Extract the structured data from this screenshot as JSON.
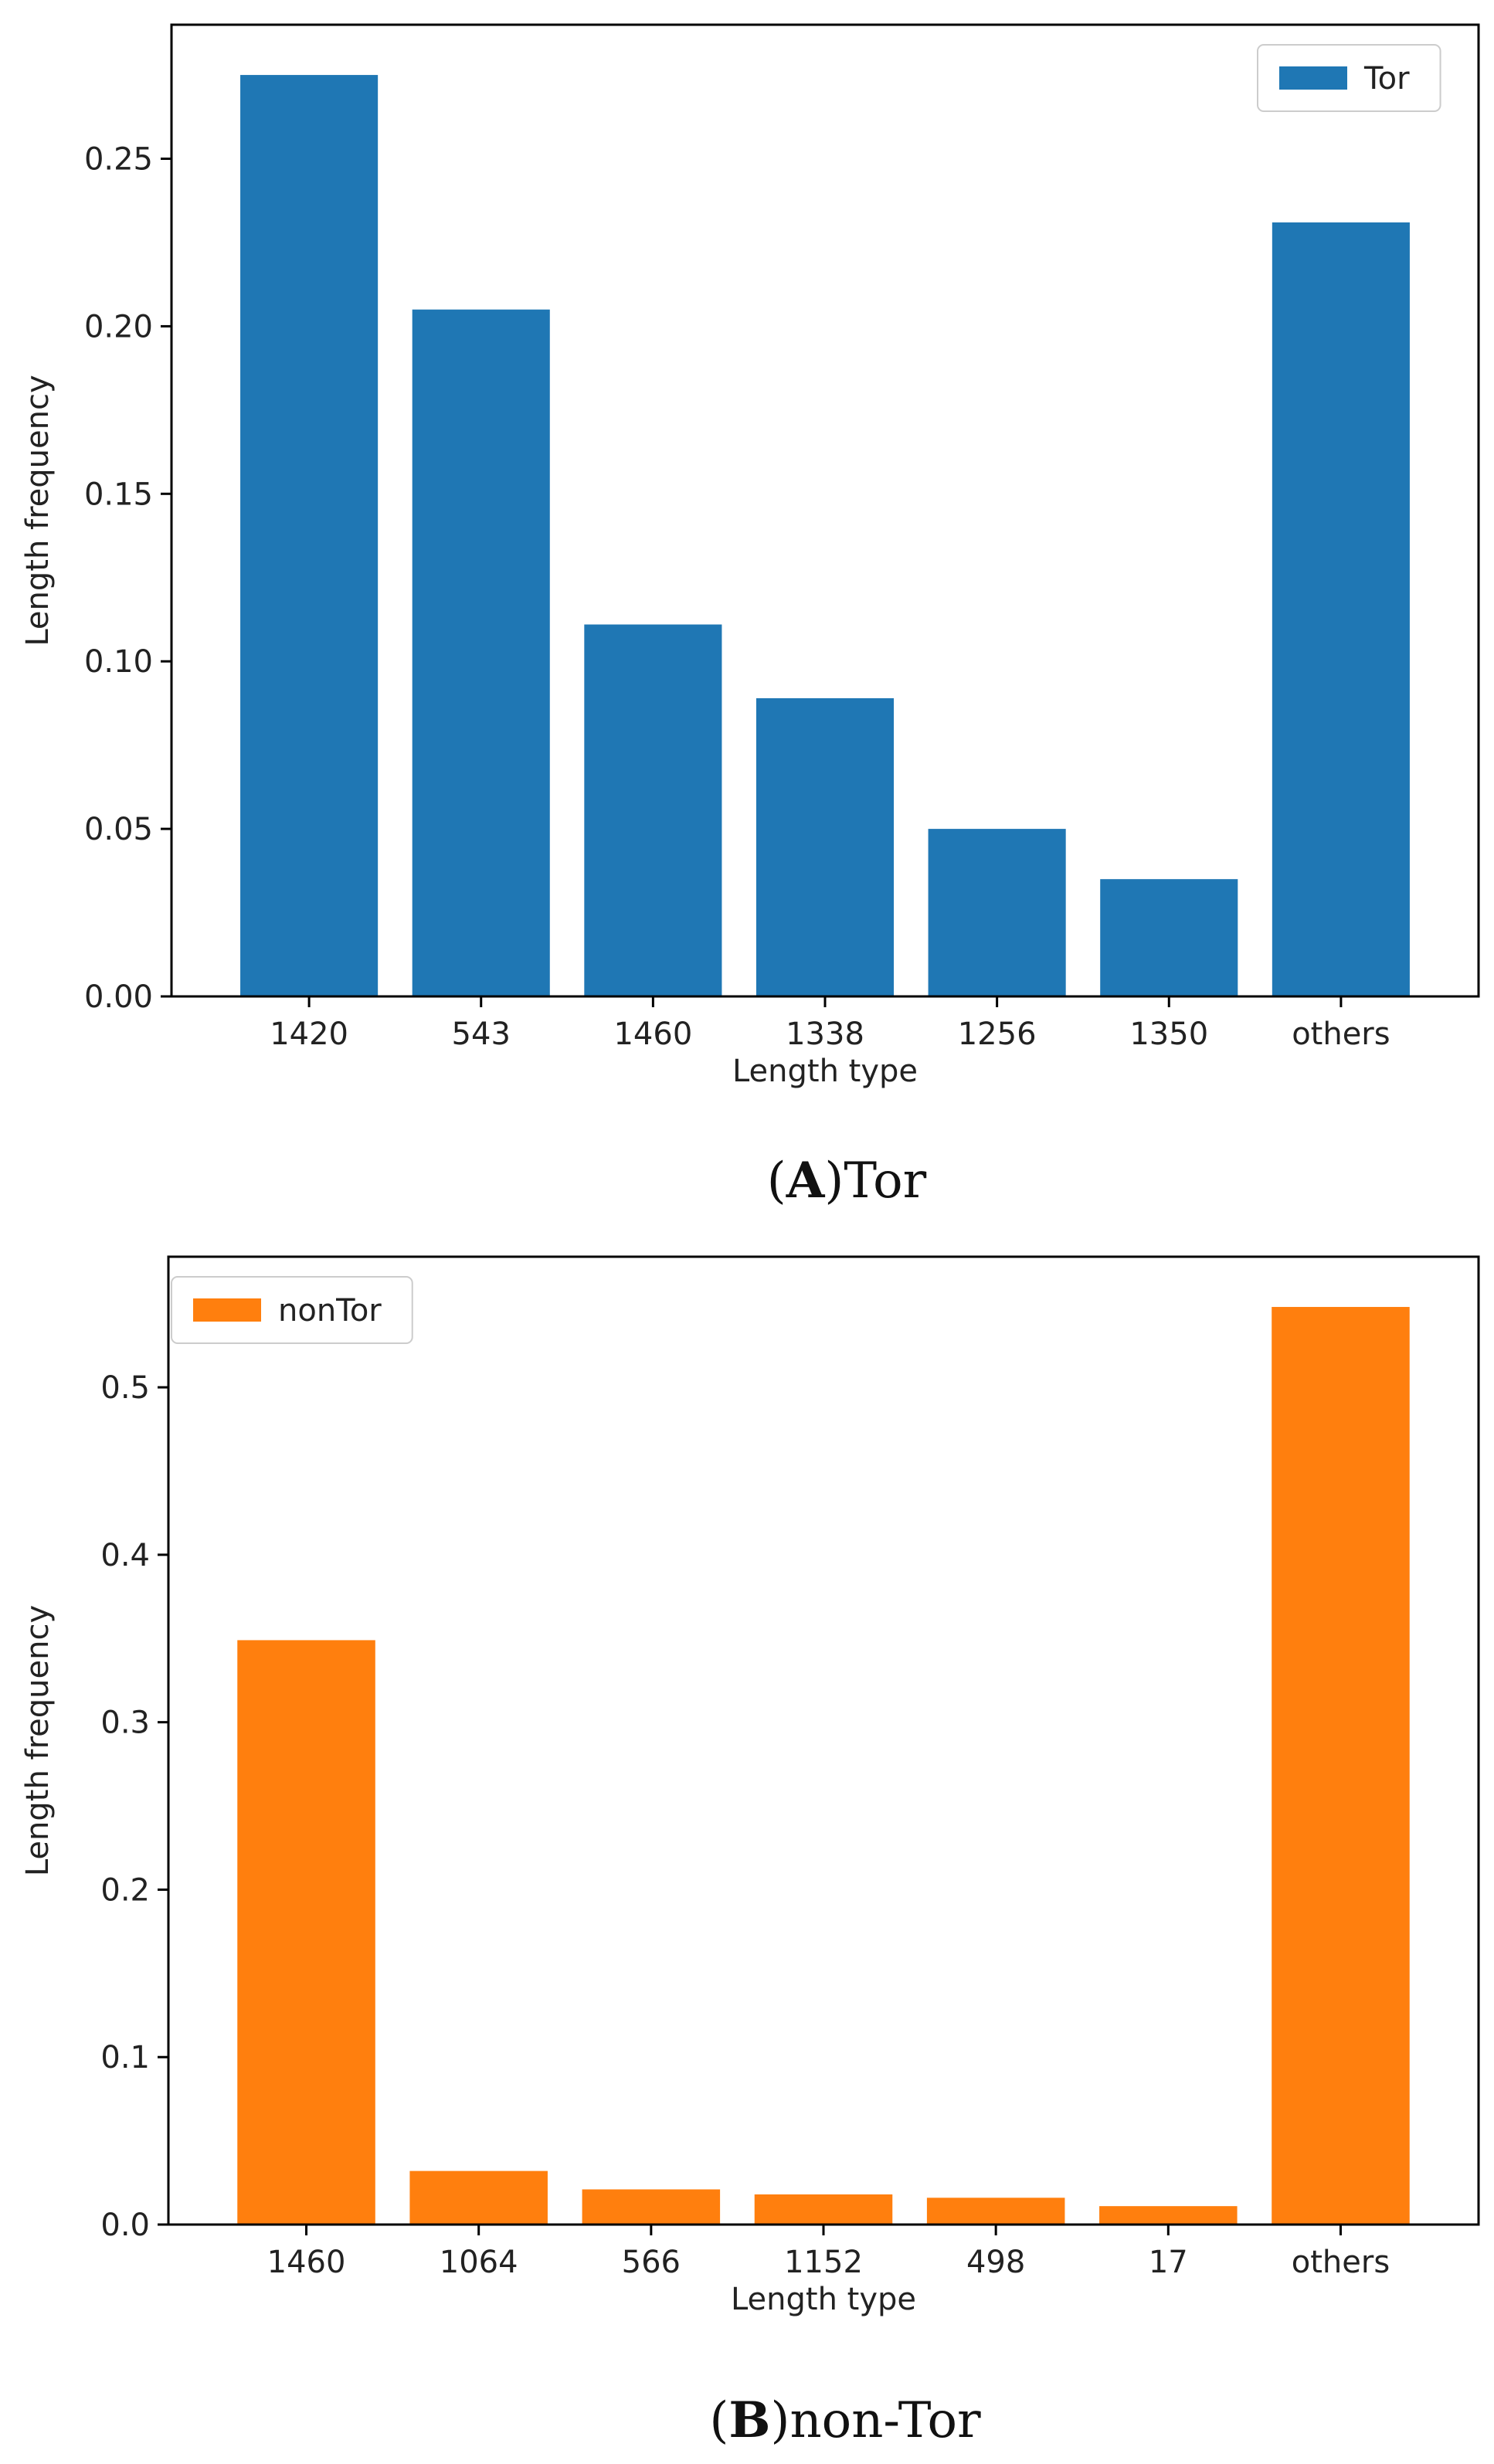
{
  "chart_data": [
    {
      "type": "bar",
      "panel": "A",
      "categories": [
        "1420",
        "543",
        "1460",
        "1338",
        "1256",
        "1350",
        "others"
      ],
      "values": [
        0.275,
        0.205,
        0.111,
        0.089,
        0.05,
        0.035,
        0.231
      ],
      "series_name": "Tor",
      "color": "#1f77b4",
      "xlabel": "Length type",
      "ylabel": "Length frequency",
      "ylim": [
        0,
        0.29
      ],
      "yticks": [
        "0.00",
        "0.05",
        "0.10",
        "0.15",
        "0.20",
        "0.25"
      ],
      "legend_position": "top-right",
      "caption_letter": "A",
      "caption_text": "Tor"
    },
    {
      "type": "bar",
      "panel": "B",
      "categories": [
        "1460",
        "1064",
        "566",
        "1152",
        "498",
        "17",
        "others"
      ],
      "values": [
        0.349,
        0.032,
        0.021,
        0.018,
        0.016,
        0.011,
        0.548
      ],
      "series_name": "nonTor",
      "color": "#ff7f0e",
      "xlabel": "Length type",
      "ylabel": "Length frequency",
      "ylim": [
        0,
        0.578
      ],
      "yticks": [
        "0.0",
        "0.1",
        "0.2",
        "0.3",
        "0.4",
        "0.5"
      ],
      "legend_position": "top-left",
      "caption_letter": "B",
      "caption_text": "non-Tor"
    }
  ]
}
